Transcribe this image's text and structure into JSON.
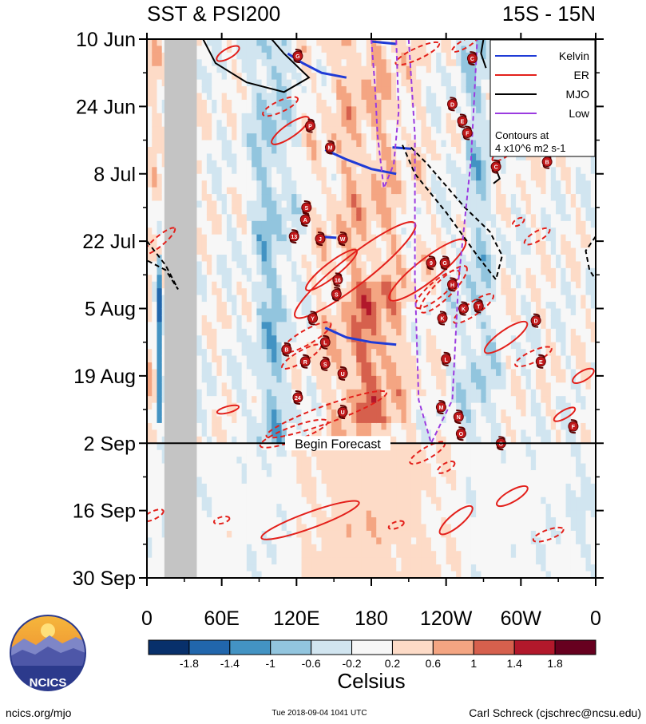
{
  "chart_data": {
    "type": "heatmap",
    "title_left": "SST & PSI200",
    "title_right": "15S - 15N",
    "x_ticks": [
      "0",
      "60E",
      "120E",
      "180",
      "120W",
      "60W",
      "0"
    ],
    "x_tick_degrees": [
      0,
      60,
      120,
      180,
      240,
      300,
      360
    ],
    "y_ticks": [
      "10 Jun",
      "24 Jun",
      "8 Jul",
      "22 Jul",
      "5 Aug",
      "19 Aug",
      "2 Sep",
      "16 Sep",
      "30 Sep"
    ],
    "y_tick_days": [
      0,
      14,
      28,
      42,
      56,
      70,
      84,
      98,
      112
    ],
    "forecast_start_day": 84,
    "forecast_label": "Begin Forecast",
    "land_band_degrees": [
      14,
      40
    ],
    "legend": [
      {
        "label": "Kelvin",
        "color": "#1f3bd6"
      },
      {
        "label": "ER",
        "color": "#e3201b"
      },
      {
        "label": "MJO",
        "color": "#000000"
      },
      {
        "label": "Low",
        "color": "#9b3be0"
      }
    ],
    "contour_note_1": "Contours at",
    "contour_note_2": "4 x10^6 m2 s-1",
    "colorbar_labels": [
      "-1.8",
      "-1.4",
      "-1",
      "-0.6",
      "-0.2",
      "0.2",
      "0.6",
      "1",
      "1.4",
      "1.8"
    ],
    "colorbar_colors": [
      "#08306b",
      "#2166ac",
      "#4393c3",
      "#92c5de",
      "#d1e5f0",
      "#f7f7f7",
      "#fddbc7",
      "#f4a582",
      "#d6604d",
      "#b2182b",
      "#67001f"
    ],
    "colorbar_unit": "Celsius",
    "storms": [
      {
        "label": "G",
        "lon": 121,
        "day": 3.5
      },
      {
        "label": "C",
        "lon": 261,
        "day": 4
      },
      {
        "label": "D",
        "lon": 245,
        "day": 13.5
      },
      {
        "label": "E",
        "lon": 253,
        "day": 17
      },
      {
        "label": "F",
        "lon": 257,
        "day": 19.5
      },
      {
        "label": "P",
        "lon": 131,
        "day": 18
      },
      {
        "label": "M",
        "lon": 147,
        "day": 22.5
      },
      {
        "label": "C",
        "lon": 280,
        "day": 26.5
      },
      {
        "label": "B",
        "lon": 321,
        "day": 25.5
      },
      {
        "label": "S",
        "lon": 128,
        "day": 35
      },
      {
        "label": "A",
        "lon": 127,
        "day": 37.5
      },
      {
        "label": "13",
        "lon": 118,
        "day": 41
      },
      {
        "label": "J",
        "lon": 139,
        "day": 41.5
      },
      {
        "label": "W",
        "lon": 157,
        "day": 41.5
      },
      {
        "label": "9",
        "lon": 228,
        "day": 46.5
      },
      {
        "label": "G",
        "lon": 239,
        "day": 46.5
      },
      {
        "label": "16",
        "lon": 153,
        "day": 50
      },
      {
        "label": "H",
        "lon": 245,
        "day": 51
      },
      {
        "label": "S",
        "lon": 152,
        "day": 53
      },
      {
        "label": "K",
        "lon": 254,
        "day": 56
      },
      {
        "label": "T",
        "lon": 266,
        "day": 55.5
      },
      {
        "label": "K",
        "lon": 237,
        "day": 58
      },
      {
        "label": "Y",
        "lon": 133,
        "day": 58
      },
      {
        "label": "D",
        "lon": 312,
        "day": 58.5
      },
      {
        "label": "L",
        "lon": 143,
        "day": 63
      },
      {
        "label": "B",
        "lon": 112,
        "day": 64.5
      },
      {
        "label": "R",
        "lon": 127,
        "day": 67
      },
      {
        "label": "S",
        "lon": 143,
        "day": 67.5
      },
      {
        "label": "L",
        "lon": 240,
        "day": 66.5
      },
      {
        "label": "E",
        "lon": 316,
        "day": 67
      },
      {
        "label": "U",
        "lon": 157,
        "day": 69.5
      },
      {
        "label": "24",
        "lon": 121,
        "day": 74.5
      },
      {
        "label": "M",
        "lon": 236,
        "day": 76.5
      },
      {
        "label": "U",
        "lon": 157,
        "day": 77.5
      },
      {
        "label": "N",
        "lon": 250,
        "day": 78.5
      },
      {
        "label": "F",
        "lon": 342,
        "day": 80.5
      },
      {
        "label": "O",
        "lon": 252,
        "day": 82
      },
      {
        "label": "O",
        "lon": 284,
        "day": 84
      }
    ]
  },
  "footer": {
    "logo_text": "NCICS",
    "site": "ncics.org/mjo",
    "timestamp": "Tue 2018-09-04 1041 UTC",
    "author": "Carl Schreck (cjschrec@ncsu.edu)"
  },
  "colors": {
    "kelvin": "#1f3bd6",
    "er": "#e3201b",
    "mjo": "#000000",
    "low": "#9b3be0",
    "land": "#c4c4c4"
  }
}
